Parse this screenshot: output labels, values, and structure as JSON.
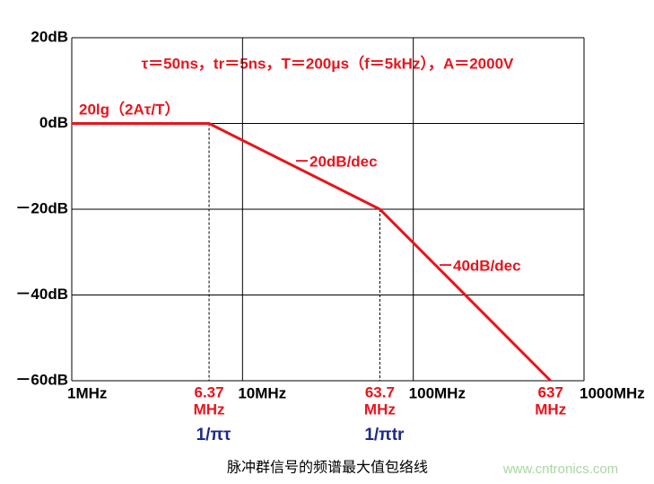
{
  "chart_data": {
    "type": "line",
    "log_x": true,
    "grid": true,
    "xlim": [
      1,
      1000
    ],
    "ylim": [
      -60,
      20
    ],
    "xticks": [
      {
        "value": 1,
        "label": "1MHz"
      },
      {
        "value": 10,
        "label": "10MHz"
      },
      {
        "value": 100,
        "label": "100MHz"
      },
      {
        "value": 1000,
        "label": "1000MHz"
      }
    ],
    "yticks": [
      {
        "value": 20,
        "label": "20dB"
      },
      {
        "value": 0,
        "label": "0dB"
      },
      {
        "value": -20,
        "label": "－20dB"
      },
      {
        "value": -40,
        "label": "－40dB"
      },
      {
        "value": -60,
        "label": "－60dB"
      }
    ],
    "x": [
      1,
      6.37,
      63.7,
      637
    ],
    "values": [
      0,
      0,
      -20,
      -60
    ],
    "color": "#e8141c",
    "parameters": "τ＝50ns，tr＝5ns，T＝200μs（f＝5kHz），A＝2000V",
    "level_label": "20lg（2Aτ/T）",
    "slope_labels": [
      "－20dB/dec",
      "－40dB/dec"
    ],
    "frequency_unit": "MHz",
    "corner_formulas": [
      "1/πτ",
      "1/πtr"
    ],
    "caption": "脉冲群信号的频谱最大值包络线",
    "watermark": "www.cntronics.com"
  }
}
